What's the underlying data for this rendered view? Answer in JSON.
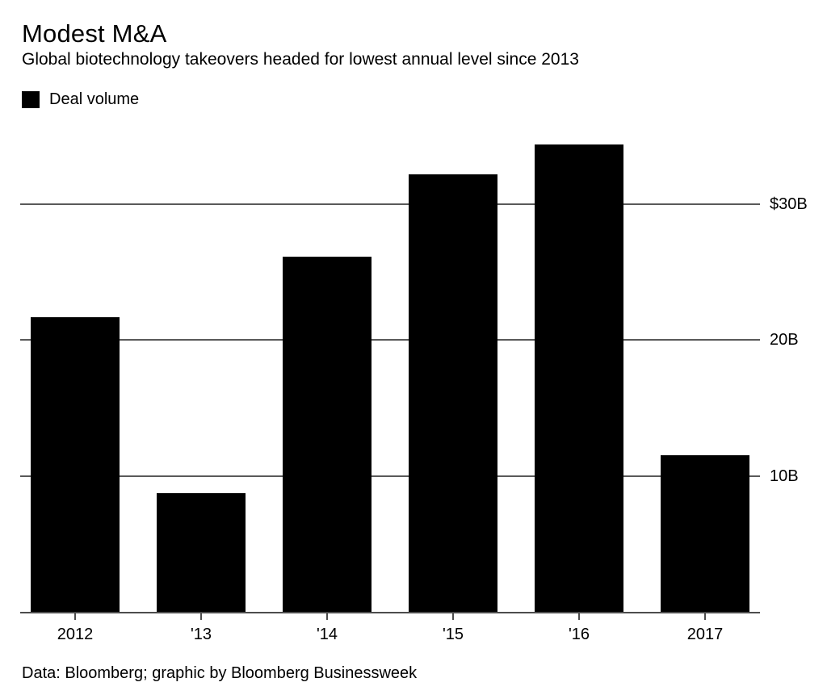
{
  "header": {
    "title": "Modest M&A",
    "subtitle": "Global biotechnology takeovers headed for lowest annual level since 2013"
  },
  "legend": {
    "label": "Deal volume",
    "swatch_color": "#000000"
  },
  "footer": {
    "source": "Data: Bloomberg; graphic by Bloomberg Businessweek"
  },
  "colors": {
    "bar": "#000000",
    "gridline": "#595959",
    "axis": "#4d4d4d",
    "text": "#000000",
    "background": "#ffffff"
  },
  "chart_data": {
    "type": "bar",
    "title": "Modest M&A",
    "subtitle": "Global biotechnology takeovers headed for lowest annual level since 2013",
    "categories": [
      "2012",
      "'13",
      "'14",
      "'15",
      "'16",
      "2017"
    ],
    "series": [
      {
        "name": "Deal volume",
        "values": [
          21.7,
          8.7,
          26.1,
          32.2,
          34.4,
          11.5
        ]
      }
    ],
    "unit": "USD billions",
    "xlabel": "",
    "ylabel": "",
    "ylim": [
      0,
      36.7
    ],
    "y_ticks": [
      {
        "value": 30,
        "label": "$30B"
      },
      {
        "value": 20,
        "label": "20B"
      },
      {
        "value": 10,
        "label": "10B"
      }
    ],
    "grid": true,
    "legend_position": "top-left",
    "y_axis_side": "right"
  }
}
